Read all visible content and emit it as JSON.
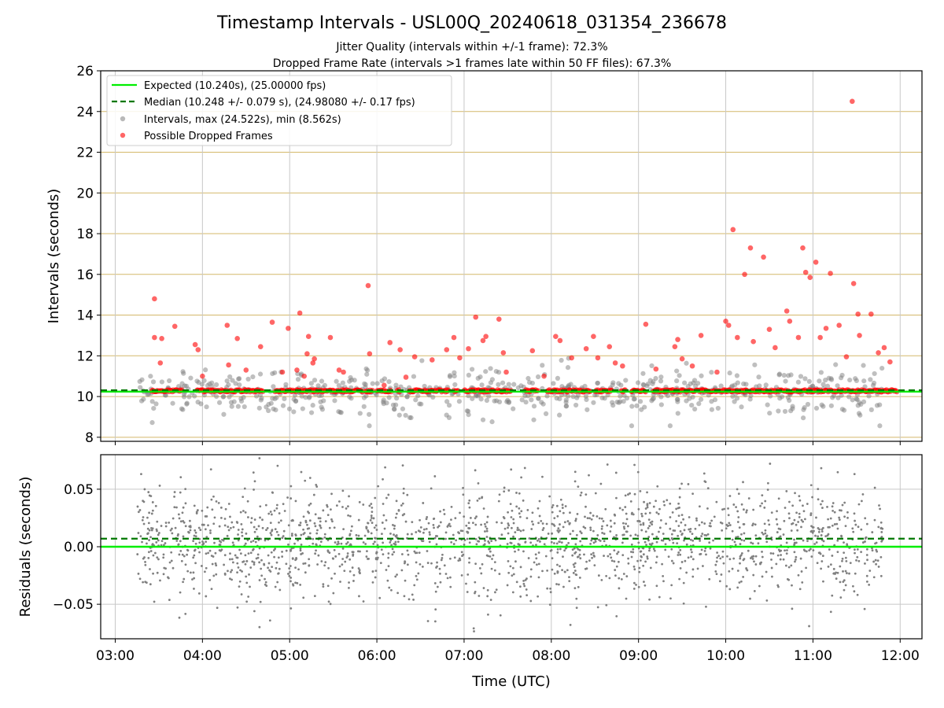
{
  "figure": {
    "title": "Timestamp Intervals - USL00Q_20240618_031354_236678",
    "subtitle_1": "Jitter Quality (intervals within +/-1 frame): 72.3%",
    "subtitle_2": "Dropped Frame Rate (intervals >1 frames late within 50 FF files): 67.3%"
  },
  "colors": {
    "expected": "#00ee00",
    "median": "#007700",
    "intervals": "#808080",
    "dropped": "#ff0000",
    "hgrid_top": "#d4b86a",
    "grid": "#c8c8c8"
  },
  "chart_data": [
    {
      "type": "scatter",
      "panel": "top",
      "ylabel": "Intervals (seconds)",
      "xlabel": "",
      "xlim": [
        "02:50",
        "12:15"
      ],
      "ylim": [
        7.8,
        26
      ],
      "xticks": [
        "03:00",
        "04:00",
        "05:00",
        "06:00",
        "07:00",
        "08:00",
        "09:00",
        "10:00",
        "11:00",
        "12:00"
      ],
      "yticks": [
        "8",
        "10",
        "12",
        "14",
        "16",
        "18",
        "20",
        "22",
        "24",
        "26"
      ],
      "grid": true,
      "legend_position": "upper-left",
      "reference_lines": [
        {
          "name": "Expected (10.240s), (25.00000 fps)",
          "y": 10.24,
          "style": "solid",
          "color": "#00ee00"
        },
        {
          "name": "Median (10.248 +/- 0.079 s), (24.98080 +/- 0.17 fps)",
          "y": 10.248,
          "style": "dashed",
          "color": "#007700"
        }
      ],
      "series": [
        {
          "name": "Intervals, max (24.522s), min (8.562s)",
          "time_range": [
            "03:15",
            "11:48"
          ],
          "center": 10.24,
          "max": 24.522,
          "min": 8.562
        },
        {
          "name": "Possible Dropped Frames",
          "baseline": 10.28,
          "points": [
            [
              "03:27",
              14.8
            ],
            [
              "03:27",
              12.9
            ],
            [
              "03:32",
              12.85
            ],
            [
              "03:31",
              11.65
            ],
            [
              "03:41",
              13.45
            ],
            [
              "03:55",
              12.55
            ],
            [
              "03:57",
              12.3
            ],
            [
              "04:00",
              11.0
            ],
            [
              "04:17",
              13.5
            ],
            [
              "04:18",
              11.55
            ],
            [
              "04:24",
              12.85
            ],
            [
              "04:30",
              11.3
            ],
            [
              "04:40",
              12.45
            ],
            [
              "04:48",
              13.65
            ],
            [
              "04:55",
              11.2
            ],
            [
              "04:59",
              13.35
            ],
            [
              "05:07",
              14.1
            ],
            [
              "05:05",
              11.3
            ],
            [
              "05:10",
              11.0
            ],
            [
              "05:12",
              12.1
            ],
            [
              "05:13",
              12.95
            ],
            [
              "05:16",
              11.65
            ],
            [
              "05:17",
              11.85
            ],
            [
              "05:28",
              12.9
            ],
            [
              "05:34",
              11.3
            ],
            [
              "05:37",
              11.2
            ],
            [
              "05:54",
              15.45
            ],
            [
              "05:55",
              12.1
            ],
            [
              "06:05",
              10.55
            ],
            [
              "06:09",
              12.65
            ],
            [
              "06:16",
              12.3
            ],
            [
              "06:20",
              10.95
            ],
            [
              "06:26",
              11.95
            ],
            [
              "06:38",
              11.8
            ],
            [
              "06:48",
              12.3
            ],
            [
              "06:53",
              12.9
            ],
            [
              "06:57",
              11.9
            ],
            [
              "07:03",
              12.35
            ],
            [
              "07:08",
              13.9
            ],
            [
              "07:13",
              12.75
            ],
            [
              "07:15",
              12.95
            ],
            [
              "07:24",
              13.8
            ],
            [
              "07:27",
              12.15
            ],
            [
              "07:29",
              11.2
            ],
            [
              "07:47",
              12.25
            ],
            [
              "07:55",
              11.0
            ],
            [
              "08:03",
              12.95
            ],
            [
              "08:06",
              12.75
            ],
            [
              "08:14",
              11.9
            ],
            [
              "08:24",
              12.35
            ],
            [
              "08:29",
              12.95
            ],
            [
              "08:32",
              11.9
            ],
            [
              "08:40",
              12.45
            ],
            [
              "08:44",
              11.65
            ],
            [
              "08:49",
              11.5
            ],
            [
              "09:05",
              13.55
            ],
            [
              "09:12",
              11.35
            ],
            [
              "09:25",
              12.45
            ],
            [
              "09:27",
              12.8
            ],
            [
              "09:30",
              11.85
            ],
            [
              "09:37",
              11.5
            ],
            [
              "09:43",
              13.0
            ],
            [
              "09:54",
              11.2
            ],
            [
              "10:00",
              13.7
            ],
            [
              "10:02",
              13.5
            ],
            [
              "10:05",
              18.2
            ],
            [
              "10:08",
              12.9
            ],
            [
              "10:13",
              16.0
            ],
            [
              "10:17",
              17.3
            ],
            [
              "10:19",
              12.7
            ],
            [
              "10:26",
              16.85
            ],
            [
              "10:30",
              13.3
            ],
            [
              "10:34",
              12.4
            ],
            [
              "10:42",
              14.2
            ],
            [
              "10:44",
              13.7
            ],
            [
              "10:50",
              12.9
            ],
            [
              "10:53",
              17.3
            ],
            [
              "10:55",
              16.1
            ],
            [
              "10:58",
              15.85
            ],
            [
              "11:02",
              16.6
            ],
            [
              "11:05",
              12.9
            ],
            [
              "11:09",
              13.35
            ],
            [
              "11:12",
              16.05
            ],
            [
              "11:18",
              13.5
            ],
            [
              "11:23",
              11.95
            ],
            [
              "11:27",
              24.5
            ],
            [
              "11:28",
              15.55
            ],
            [
              "11:31",
              14.05
            ],
            [
              "11:32",
              13.0
            ],
            [
              "11:40",
              14.05
            ],
            [
              "11:45",
              12.15
            ],
            [
              "11:49",
              12.4
            ],
            [
              "11:53",
              11.7
            ]
          ]
        }
      ]
    },
    {
      "type": "scatter",
      "panel": "bottom",
      "ylabel": "Residuals (seconds)",
      "xlabel": "Time (UTC)",
      "xlim": [
        "02:50",
        "12:15"
      ],
      "ylim": [
        -0.08,
        0.08
      ],
      "xticks": [
        "03:00",
        "04:00",
        "05:00",
        "06:00",
        "07:00",
        "08:00",
        "09:00",
        "10:00",
        "11:00",
        "12:00"
      ],
      "yticks": [
        "0.05",
        "0.00",
        "−0.05"
      ],
      "grid": true,
      "reference_lines": [
        {
          "y": 0.0,
          "style": "solid",
          "color": "#00ee00"
        },
        {
          "y": 0.007,
          "style": "dashed",
          "color": "#007700"
        }
      ],
      "series": [
        {
          "time_range": [
            "03:15",
            "11:48"
          ],
          "spread": 0.025,
          "range": [
            -0.08,
            0.08
          ]
        }
      ]
    }
  ]
}
